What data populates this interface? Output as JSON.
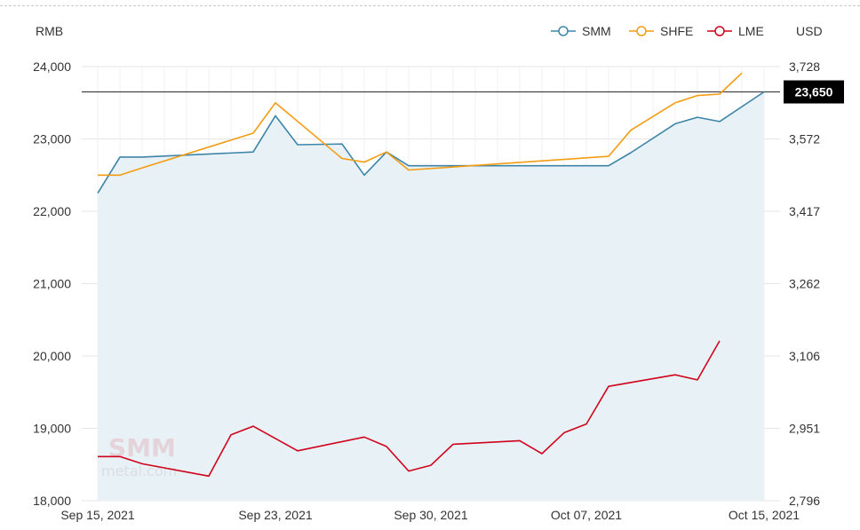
{
  "chart_data": {
    "type": "line",
    "y_left_unit": "RMB",
    "y_right_unit": "USD",
    "ylim": [
      18000,
      24000
    ],
    "yticks_left": [
      "24,000",
      "23,000",
      "22,000",
      "21,000",
      "20,000",
      "19,000",
      "18,000"
    ],
    "ylim_right": [
      2796,
      3728
    ],
    "yticks_right": [
      "3,728",
      "3,572",
      "3,417",
      "3,262",
      "3,106",
      "2,951",
      "2,796"
    ],
    "xlim": [
      "2021-09-15",
      "2021-10-15"
    ],
    "xticks": [
      {
        "date": "2021-09-15",
        "label": "Sep 15, 2021"
      },
      {
        "date": "2021-09-23",
        "label": "Sep 23, 2021"
      },
      {
        "date": "2021-09-30",
        "label": "Sep 30, 2021"
      },
      {
        "date": "2021-10-07",
        "label": "Oct 07, 2021"
      },
      {
        "date": "2021-10-15",
        "label": "Oct 15, 2021"
      }
    ],
    "legend_position": "top-right",
    "reference_line": {
      "value": 23650,
      "label": "23,650",
      "color": "#000000"
    },
    "series": [
      {
        "name": "SMM",
        "color": "#3d85a8",
        "fill": "#e8f1f6",
        "points": [
          {
            "x": "2021-09-15",
            "y": 22250
          },
          {
            "x": "2021-09-16",
            "y": 22750
          },
          {
            "x": "2021-09-17",
            "y": 22750
          },
          {
            "x": "2021-09-22",
            "y": 22820
          },
          {
            "x": "2021-09-23",
            "y": 23320
          },
          {
            "x": "2021-09-24",
            "y": 22920
          },
          {
            "x": "2021-09-26",
            "y": 22930
          },
          {
            "x": "2021-09-27",
            "y": 22500
          },
          {
            "x": "2021-09-28",
            "y": 22820
          },
          {
            "x": "2021-09-29",
            "y": 22630
          },
          {
            "x": "2021-10-08",
            "y": 22630
          },
          {
            "x": "2021-10-09",
            "y": 22810
          },
          {
            "x": "2021-10-11",
            "y": 23210
          },
          {
            "x": "2021-10-12",
            "y": 23300
          },
          {
            "x": "2021-10-13",
            "y": 23240
          },
          {
            "x": "2021-10-15",
            "y": 23650
          }
        ]
      },
      {
        "name": "SHFE",
        "color": "#f39c12",
        "points": [
          {
            "x": "2021-09-15",
            "y": 22500
          },
          {
            "x": "2021-09-16",
            "y": 22500
          },
          {
            "x": "2021-09-17",
            "y": 22600
          },
          {
            "x": "2021-09-22",
            "y": 23080
          },
          {
            "x": "2021-09-23",
            "y": 23500
          },
          {
            "x": "2021-09-26",
            "y": 22730
          },
          {
            "x": "2021-09-27",
            "y": 22680
          },
          {
            "x": "2021-09-28",
            "y": 22820
          },
          {
            "x": "2021-09-29",
            "y": 22570
          },
          {
            "x": "2021-10-08",
            "y": 22760
          },
          {
            "x": "2021-10-09",
            "y": 23120
          },
          {
            "x": "2021-10-11",
            "y": 23500
          },
          {
            "x": "2021-10-12",
            "y": 23600
          },
          {
            "x": "2021-10-13",
            "y": 23620
          },
          {
            "x": "2021-10-14",
            "y": 23910
          }
        ]
      },
      {
        "name": "LME",
        "color": "#d0021b",
        "points": [
          {
            "x": "2021-09-15",
            "y": 18610
          },
          {
            "x": "2021-09-16",
            "y": 18610
          },
          {
            "x": "2021-09-17",
            "y": 18510
          },
          {
            "x": "2021-09-20",
            "y": 18340
          },
          {
            "x": "2021-09-21",
            "y": 18910
          },
          {
            "x": "2021-09-22",
            "y": 19030
          },
          {
            "x": "2021-09-23",
            "y": 18860
          },
          {
            "x": "2021-09-24",
            "y": 18690
          },
          {
            "x": "2021-09-27",
            "y": 18880
          },
          {
            "x": "2021-09-28",
            "y": 18750
          },
          {
            "x": "2021-09-29",
            "y": 18410
          },
          {
            "x": "2021-09-30",
            "y": 18490
          },
          {
            "x": "2021-10-01",
            "y": 18780
          },
          {
            "x": "2021-10-04",
            "y": 18830
          },
          {
            "x": "2021-10-05",
            "y": 18650
          },
          {
            "x": "2021-10-06",
            "y": 18940
          },
          {
            "x": "2021-10-07",
            "y": 19060
          },
          {
            "x": "2021-10-08",
            "y": 19580
          },
          {
            "x": "2021-10-11",
            "y": 19740
          },
          {
            "x": "2021-10-12",
            "y": 19670
          },
          {
            "x": "2021-10-13",
            "y": 20210
          }
        ]
      }
    ]
  },
  "watermark": {
    "logo_text": "SMM",
    "site_text": "metal.com"
  }
}
